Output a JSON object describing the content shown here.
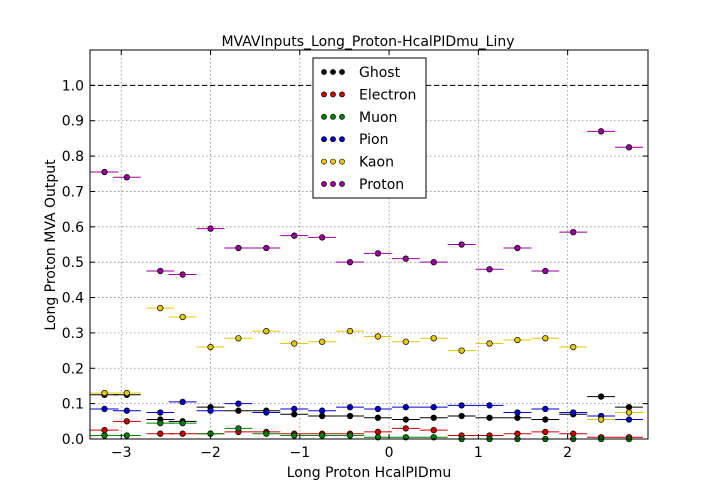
{
  "chart_data": {
    "type": "scatter",
    "title": "MVAVInputs_Long_Proton-HcalPIDmu_Liny",
    "xlabel": "Long Proton HcalPIDmu",
    "ylabel": "Long Proton MVA Output",
    "xlim": [
      -3.35,
      2.9
    ],
    "ylim": [
      0.0,
      1.1
    ],
    "xticks": [
      -3,
      -2,
      -1,
      0,
      1,
      2
    ],
    "xtick_labels": [
      "−3",
      "−2",
      "−1",
      "0",
      "1",
      "2"
    ],
    "yticks": [
      0.0,
      0.1,
      0.2,
      0.3,
      0.4,
      0.5,
      0.6,
      0.7,
      0.8,
      0.9,
      1.0
    ],
    "ytick_labels": [
      "0.0",
      "0.1",
      "0.2",
      "0.3",
      "0.4",
      "0.5",
      "0.6",
      "0.7",
      "0.8",
      "0.9",
      "1.0"
    ],
    "grid": true,
    "reference_line": 1.0,
    "legend_position": "top-center",
    "bin_width": 0.3125,
    "x": [
      -3.1875,
      -2.9375,
      -2.5625,
      -2.3125,
      -2.0,
      -1.6875,
      -1.375,
      -1.0625,
      -0.75,
      -0.4375,
      -0.125,
      0.1875,
      0.5,
      0.8125,
      1.125,
      1.4375,
      1.75,
      2.0625,
      2.375,
      2.6875
    ],
    "series": [
      {
        "name": "Ghost",
        "color": "#000000",
        "values": [
          0.125,
          0.125,
          0.055,
          0.05,
          0.09,
          0.08,
          0.08,
          0.07,
          0.065,
          0.065,
          0.06,
          0.055,
          0.06,
          0.065,
          0.06,
          0.06,
          0.055,
          0.07,
          0.12,
          0.09
        ]
      },
      {
        "name": "Electron",
        "color": "#cc0000",
        "values": [
          0.025,
          0.05,
          0.015,
          0.015,
          0.015,
          0.02,
          0.02,
          0.015,
          0.015,
          0.015,
          0.02,
          0.03,
          0.025,
          0.01,
          0.01,
          0.015,
          0.02,
          0.015,
          0.005,
          0.005
        ]
      },
      {
        "name": "Muon",
        "color": "#008000",
        "values": [
          0.01,
          0.01,
          0.045,
          0.045,
          0.015,
          0.03,
          0.015,
          0.01,
          0.01,
          0.01,
          0.005,
          0.005,
          0.005,
          0.0,
          0.0,
          0.0,
          0.0,
          0.0,
          0.0,
          0.0
        ]
      },
      {
        "name": "Pion",
        "color": "#0000cc",
        "values": [
          0.085,
          0.08,
          0.075,
          0.105,
          0.08,
          0.1,
          0.075,
          0.085,
          0.08,
          0.09,
          0.085,
          0.09,
          0.09,
          0.095,
          0.095,
          0.075,
          0.085,
          0.075,
          0.065,
          0.055
        ]
      },
      {
        "name": "Kaon",
        "color": "#e6c800",
        "values": [
          0.13,
          0.13,
          0.37,
          0.345,
          0.26,
          0.285,
          0.305,
          0.27,
          0.275,
          0.305,
          0.29,
          0.275,
          0.285,
          0.25,
          0.27,
          0.28,
          0.285,
          0.26,
          0.055,
          0.075
        ]
      },
      {
        "name": "Proton",
        "color": "#990099",
        "values": [
          0.755,
          0.74,
          0.475,
          0.465,
          0.595,
          0.54,
          0.54,
          0.575,
          0.57,
          0.5,
          0.525,
          0.51,
          0.5,
          0.55,
          0.48,
          0.54,
          0.475,
          0.585,
          0.87,
          0.825
        ]
      }
    ]
  }
}
